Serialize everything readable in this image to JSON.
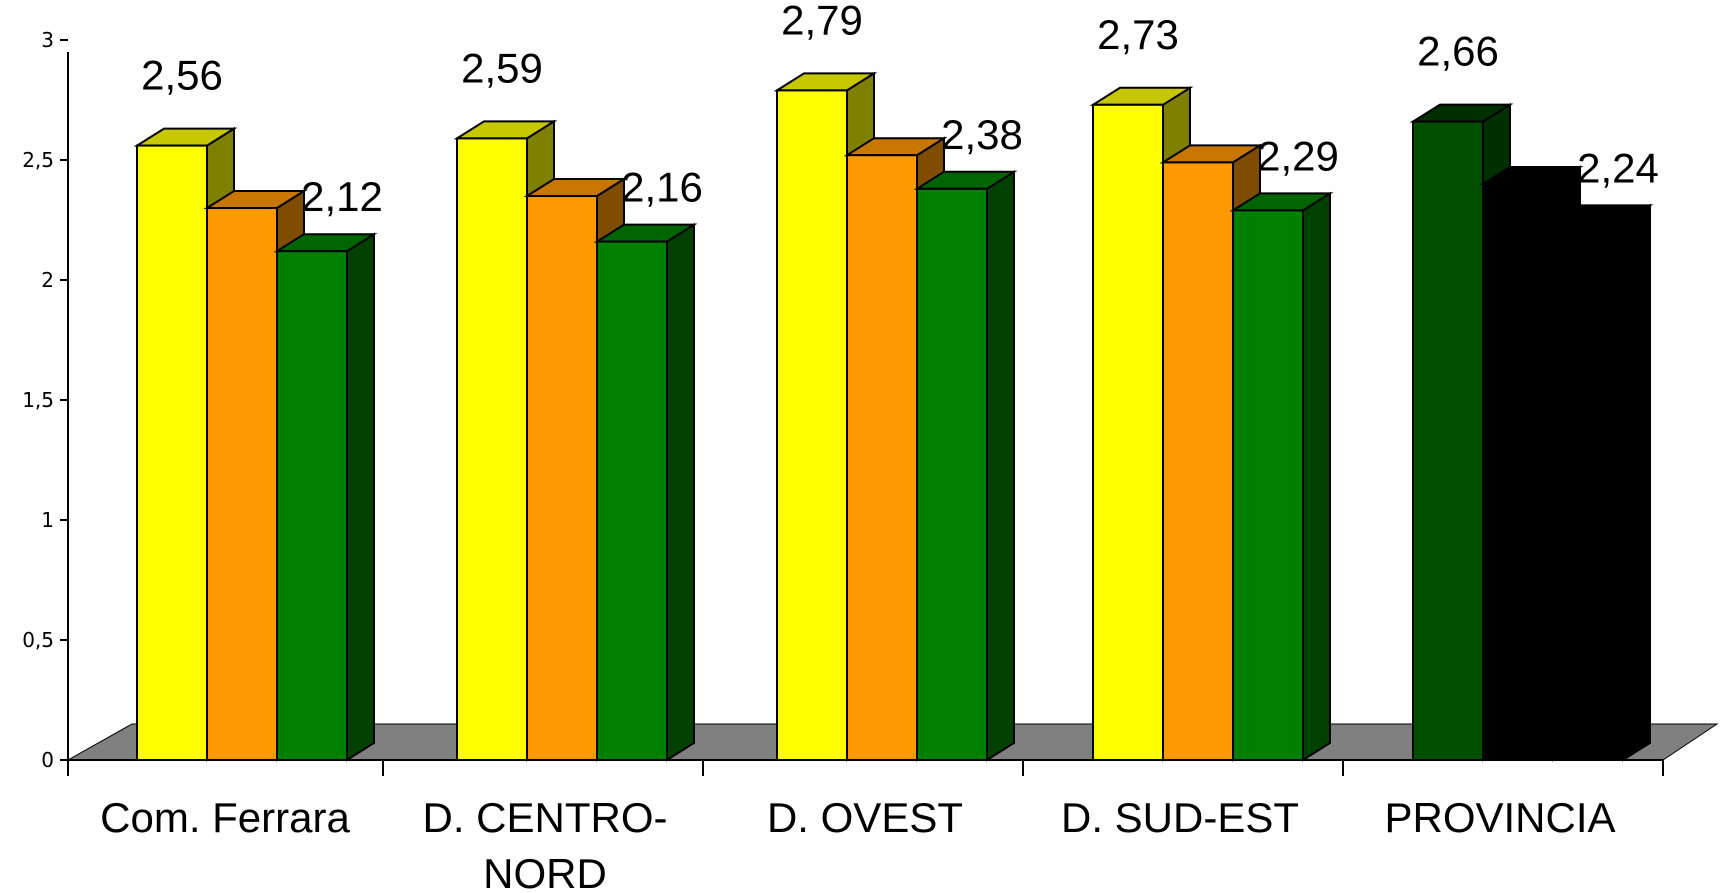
{
  "chart_data": {
    "type": "bar",
    "title": "",
    "xlabel": "",
    "ylabel": "",
    "ylim": [
      0,
      3
    ],
    "yticks": [
      "0",
      "0,5",
      "1",
      "1,5",
      "2",
      "2,5",
      "3"
    ],
    "categories": [
      "Com. Ferrara",
      "D. CENTRO-NORD",
      "D. OVEST",
      "D. SUD-EST",
      "PROVINCIA"
    ],
    "category_label_lines": [
      [
        "Com. Ferrara"
      ],
      [
        "D. CENTRO-",
        "NORD"
      ],
      [
        "D. OVEST"
      ],
      [
        "D. SUD-EST"
      ],
      [
        "PROVINCIA"
      ]
    ],
    "series": [
      {
        "values": [
          2.56,
          2.59,
          2.79,
          2.73,
          2.66
        ],
        "labels": [
          "2,56",
          "2,59",
          "2,79",
          "2,73",
          "2,66"
        ],
        "color": "#FFFF00"
      },
      {
        "values": [
          2.3,
          2.35,
          2.52,
          2.49,
          2.4
        ],
        "labels": [
          "",
          "",
          "",
          "",
          ""
        ],
        "color": "#FF9900"
      },
      {
        "values": [
          2.12,
          2.16,
          2.38,
          2.29,
          2.24
        ],
        "labels": [
          "2,12",
          "2,16",
          "2,38",
          "2,29",
          "2,24"
        ],
        "color": "#008000"
      }
    ],
    "highlight_colors": {
      "front": "#005000",
      "back": "#000000"
    },
    "floor_color": "#808080",
    "grid": false,
    "legend": "none",
    "style": "3d-bar"
  }
}
